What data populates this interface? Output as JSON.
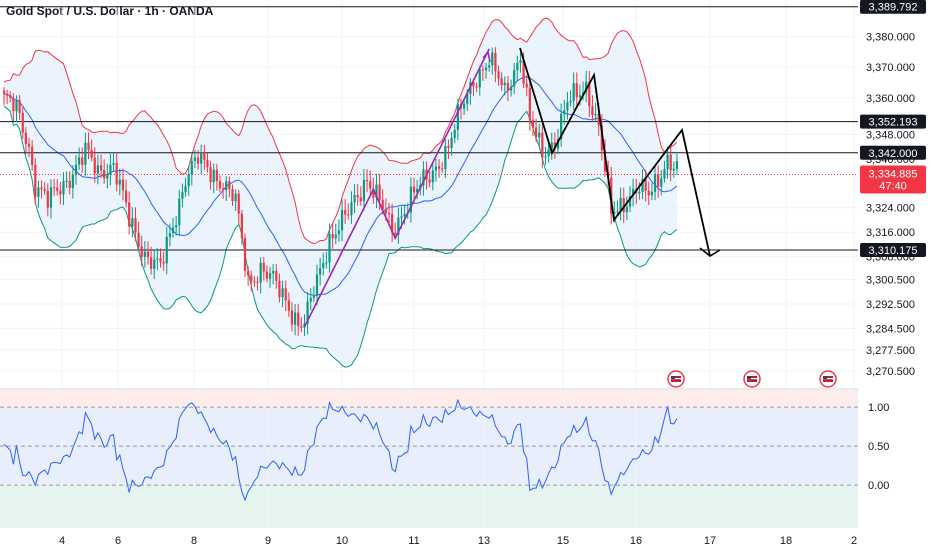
{
  "chart_data": {
    "type": "candlestick",
    "title": "Gold Spot / U.S. Dollar · 1h · OANDA",
    "x_tick_labels": [
      "4",
      "6",
      "8",
      "9",
      "10",
      "11",
      "13",
      "15",
      "16",
      "17",
      "18",
      "2"
    ],
    "price_axis": {
      "range": [
        3265,
        3392
      ],
      "tick_labels": [
        "3,380.000",
        "3,370.000",
        "3,360.000",
        "3,348.000",
        "3,340.000",
        "3,324.000",
        "3,316.000",
        "3,308.000",
        "3,300.500",
        "3,292.500",
        "3,284.500",
        "3,277.500",
        "3,270.500"
      ]
    },
    "price_tags": [
      {
        "label": "3,389.792",
        "value": 3389.792
      },
      {
        "label": "3,352.193",
        "value": 3352.193
      },
      {
        "label": "3,342.000",
        "value": 3342.0
      },
      {
        "label": "3,310.175",
        "value": 3310.175
      }
    ],
    "current_price": {
      "label": "3,334.885",
      "value": 3334.885,
      "countdown": "47:40",
      "color": "#f23645"
    },
    "horizontal_levels": [
      3389.792,
      3352.193,
      3342.0,
      3310.175
    ],
    "indicator": {
      "type": "line",
      "range": [
        -0.55,
        1.22
      ],
      "tick_labels": [
        "1.00",
        "0.50",
        "0.00"
      ],
      "levels": [
        1.0,
        0.5,
        0.0
      ]
    },
    "colors": {
      "up": "#089981",
      "down": "#f23645",
      "bb_upper": "#f23645",
      "bb_lower": "#089981",
      "bb_basis": "#2962ff",
      "bb_fill": "#e3f0fb",
      "indicator_line": "#2962ff",
      "drawing_purple": "#9c27b0",
      "drawing_black": "#000000"
    },
    "icons": [
      "us-flag-icon",
      "us-flag-icon",
      "us-flag-icon"
    ]
  }
}
